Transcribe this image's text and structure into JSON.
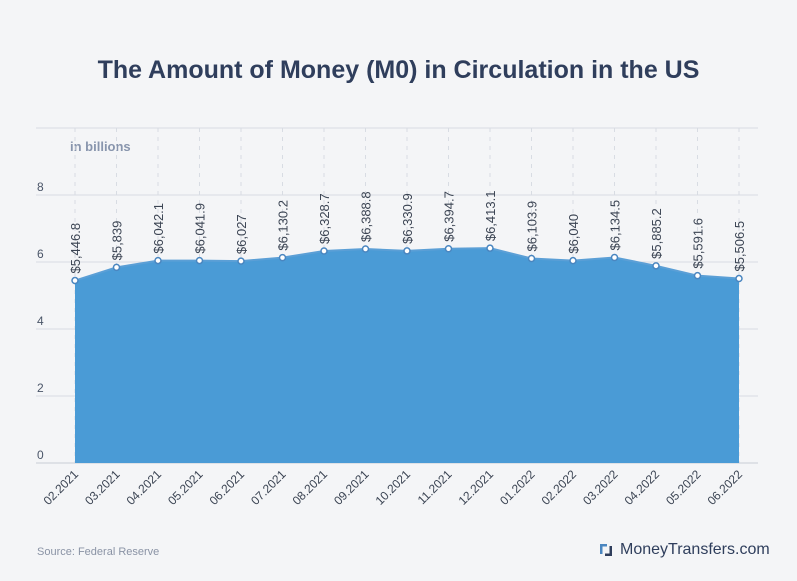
{
  "page": {
    "title": "The Amount of Money (M0) in Circulation in the US",
    "unit_label": "in billions",
    "source": "Source: Federal Reserve",
    "brand": "MoneyTransfers.com"
  },
  "colors": {
    "area": "#4a9bd6",
    "line": "#5b9fd6",
    "marker": "#4a86c0",
    "grid": "#d8dce3",
    "title": "#2f3e5c"
  },
  "icons": {
    "brand": "money-transfers-logo-icon"
  },
  "chart_data": {
    "type": "area",
    "title": "The Amount of Money (M0) in Circulation in the US",
    "ylabel": "in billions",
    "ylim": [
      0,
      10
    ],
    "yticks": [
      "0",
      "2",
      "4",
      "6",
      "8"
    ],
    "ytick_values": [
      0,
      2,
      4,
      6,
      8
    ],
    "grid": true,
    "categories": [
      "02.2021",
      "03.2021",
      "04.2021",
      "05.2021",
      "06.2021",
      "07.2021",
      "08.2021",
      "09.2021",
      "10.2021",
      "11.2021",
      "12.2021",
      "01.2022",
      "02.2022",
      "03.2022",
      "04.2022",
      "05.2022",
      "06.2022"
    ],
    "values": [
      5.4468,
      5.839,
      6.0421,
      6.0419,
      6.027,
      6.1302,
      6.3287,
      6.3888,
      6.3309,
      6.3947,
      6.4131,
      6.1039,
      6.04,
      6.1345,
      5.8852,
      5.5916,
      5.5065
    ],
    "data_labels": [
      "$5,446.8",
      "$5,839",
      "$6,042.1",
      "$6,041.9",
      "$6,027",
      "$6,130.2",
      "$6,328.7",
      "$6,388.8",
      "$6,330.9",
      "$6,394.7",
      "$6,413.1",
      "$6,103.9",
      "$6,040",
      "$6,134.5",
      "$5,885.2",
      "$5,591.6",
      "$5,506.5"
    ]
  }
}
